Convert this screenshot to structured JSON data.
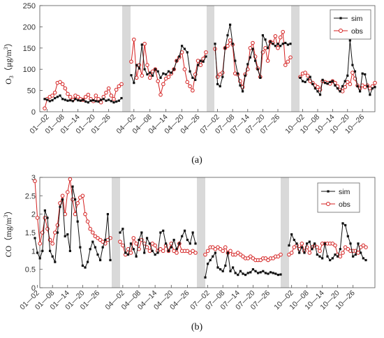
{
  "colors": {
    "sim": "#111111",
    "obs": "#d42020",
    "gap": "#d9d9d9",
    "axis": "#555555"
  },
  "chart_data": [
    {
      "type": "line",
      "caption": "(a)",
      "ylabel": "O3（μg/m3）",
      "ylabel_parts": {
        "base": "O",
        "sub": "3",
        "open": "（μg/m",
        "sup": "3",
        "close": "）"
      },
      "ylim": [
        0,
        250
      ],
      "yticks": [
        "0",
        "50",
        "100",
        "150",
        "200",
        "250"
      ],
      "legend": {
        "position": "top-right",
        "entries": [
          "sim",
          "obs"
        ]
      },
      "grid": false,
      "months": [
        {
          "xticks": [
            "01—02",
            "01—08",
            "01—14",
            "01—20",
            "01—26"
          ]
        },
        {
          "xticks": [
            "04—02",
            "04—08",
            "04—14",
            "04—20",
            "04—26"
          ]
        },
        {
          "xticks": [
            "07—02",
            "07—08",
            "07—14",
            "07—20",
            "07—26"
          ]
        },
        {
          "xticks": [
            "10—02",
            "10—08",
            "10—14",
            "10—20",
            "10—26"
          ]
        }
      ],
      "series": [
        {
          "name": "sim",
          "values": [
            [
              30,
              28,
              25,
              27,
              32,
              35,
              38,
              30,
              28,
              26,
              27,
              25,
              30,
              27,
              26,
              28,
              24,
              22,
              26,
              27,
              25,
              24,
              28,
              30,
              26,
              28,
              25,
              22,
              24,
              26,
              32
            ],
            [
              86,
              68,
              110,
              102,
              158,
              100,
              88,
              92,
              85,
              100,
              95,
              80,
              90,
              88,
              95,
              92,
              100,
              120,
              130,
              155,
              148,
              140,
              95,
              80,
              75,
              110,
              120,
              118,
              130
            ],
            [
              160,
              65,
              60,
              82,
              150,
              180,
              205,
              160,
              120,
              90,
              62,
              48,
              85,
              112,
              128,
              148,
              120,
              100,
              80,
              180,
              170,
              150,
              165,
              160,
              155,
              160,
              155,
              160,
              162,
              158,
              160
            ],
            [
              80,
              72,
              70,
              76,
              82,
              65,
              55,
              48,
              40,
              75,
              68,
              66,
              70,
              72,
              62,
              55,
              48,
              60,
              72,
              85,
              168,
              110,
              95,
              60,
              48,
              90,
              88,
              60,
              40,
              55,
              58
            ]
          ]
        },
        {
          "name": "obs",
          "values": [
            [
              8,
              30,
              35,
              38,
              45,
              68,
              70,
              65,
              55,
              42,
              35,
              28,
              38,
              35,
              30,
              28,
              35,
              40,
              30,
              25,
              38,
              30,
              22,
              35,
              45,
              55,
              38,
              30,
              52,
              60,
              65
            ],
            [
              118,
              170,
              80,
              110,
              85,
              160,
              110,
              80,
              95,
              100,
              72,
              40,
              65,
              78,
              82,
              90,
              100,
              120,
              128,
              140,
              100,
              70,
              60,
              50,
              88,
              120,
              110,
              125,
              140
            ],
            [
              148,
              82,
              88,
              92,
              150,
              155,
              168,
              158,
              90,
              88,
              72,
              58,
              88,
              100,
              150,
              162,
              130,
              102,
              82,
              140,
              150,
              120,
              165,
              162,
              178,
              150,
              175,
              188,
              110,
              118,
              128
            ],
            [
              82,
              90,
              92,
              85,
              72,
              68,
              62,
              58,
              52,
              72,
              70,
              68,
              66,
              72,
              68,
              60,
              52,
              48,
              58,
              70,
              65,
              92,
              78,
              62,
              55,
              62,
              58,
              62,
              55,
              60,
              68
            ]
          ]
        }
      ]
    },
    {
      "type": "line",
      "caption": "(b)",
      "ylabel": "CO（mg/m3）",
      "ylabel_parts": {
        "base": "CO",
        "sub": "",
        "open": "（mg/m",
        "sup": "3",
        "close": "）"
      },
      "ylim": [
        0,
        3
      ],
      "yticks": [
        "0",
        "0.5",
        "1",
        "1.5",
        "2",
        "2.5",
        "3"
      ],
      "legend": {
        "position": "top-right",
        "entries": [
          "sim",
          "obs"
        ]
      },
      "grid": false,
      "months": [
        {
          "xticks": [
            "01—02",
            "01—08",
            "01—14",
            "01—20",
            "01—26"
          ]
        },
        {
          "xticks": [
            "04—02",
            "04—08",
            "04—14",
            "04—20",
            "04—26"
          ]
        },
        {
          "xticks": [
            "07—02",
            "07—08",
            "07—14",
            "07—20",
            "07—26"
          ]
        },
        {
          "xticks": [
            "10—02",
            "10—08",
            "10—14",
            "10—20",
            "10—26"
          ]
        }
      ],
      "series": [
        {
          "name": "sim",
          "values": [
            [
              1.35,
              0.95,
              0.8,
              1.0,
              2.1,
              1.9,
              1.0,
              0.85,
              0.7,
              1.5,
              2.2,
              2.4,
              1.4,
              1.45,
              1.0,
              2.75,
              2.4,
              1.8,
              1.1,
              0.6,
              0.55,
              0.7,
              1.05,
              1.25,
              1.1,
              0.9,
              0.75,
              1.1,
              1.3,
              2.0,
              0.75
            ],
            [
              1.5,
              1.6,
              0.95,
              0.9,
              1.2,
              1.05,
              0.85,
              1.3,
              1.5,
              0.95,
              1.35,
              1.2,
              1.0,
              0.9,
              0.95,
              1.5,
              1.55,
              1.2,
              1.0,
              1.1,
              1.3,
              1.05,
              1.2,
              1.4,
              1.55,
              1.3,
              1.2,
              1.5,
              1.2
            ],
            [
              0.28,
              0.65,
              0.75,
              0.85,
              0.95,
              0.55,
              0.5,
              0.45,
              0.6,
              0.95,
              0.45,
              0.55,
              0.4,
              0.35,
              0.45,
              0.38,
              0.35,
              0.4,
              0.42,
              0.5,
              0.45,
              0.4,
              0.42,
              0.45,
              0.4,
              0.38,
              0.42,
              0.4,
              0.38,
              0.35,
              0.36
            ],
            [
              1.15,
              1.45,
              1.3,
              1.2,
              0.95,
              1.1,
              0.95,
              1.2,
              1.25,
              1.05,
              1.2,
              0.9,
              0.85,
              0.8,
              1.2,
              0.85,
              0.75,
              0.8,
              0.9,
              0.85,
              1.05,
              1.75,
              1.7,
              1.4,
              1.2,
              0.85,
              0.9,
              1.2,
              0.95,
              0.8,
              0.75
            ]
          ]
        },
        {
          "name": "obs",
          "values": [
            [
              2.9,
              1.9,
              1.2,
              1.5,
              1.9,
              1.6,
              1.3,
              1.2,
              1.5,
              1.7,
              2.3,
              2.5,
              2.0,
              2.6,
              2.95,
              2.4,
              2.0,
              2.3,
              2.45,
              2.5,
              2.0,
              1.8,
              1.6,
              1.5,
              1.4,
              1.35,
              1.3,
              1.25,
              1.2,
              1.3,
              1.35
            ],
            [
              1.25,
              1.15,
              0.9,
              1.05,
              0.95,
              1.35,
              1.2,
              1.05,
              1.3,
              1.2,
              1.1,
              1.0,
              1.2,
              1.15,
              1.0,
              1.05,
              1.0,
              1.15,
              1.0,
              1.2,
              1.0,
              0.95,
              1.2,
              1.0,
              1.0,
              1.0,
              0.95,
              1.0,
              0.95
            ],
            [
              0.9,
              1.0,
              1.1,
              1.1,
              1.05,
              1.1,
              1.05,
              1.0,
              1.1,
              0.95,
              1.0,
              0.9,
              0.9,
              0.95,
              0.9,
              0.85,
              0.8,
              0.8,
              0.85,
              0.8,
              0.75,
              0.75,
              0.75,
              0.8,
              0.8,
              0.75,
              0.8,
              0.8,
              0.85,
              0.85,
              0.9
            ],
            [
              0.9,
              0.95,
              1.1,
              1.15,
              1.05,
              1.2,
              1.0,
              1.1,
              0.95,
              1.1,
              1.15,
              1.1,
              1.0,
              1.2,
              1.2,
              1.2,
              1.2,
              1.2,
              1.15,
              0.9,
              0.85,
              0.95,
              1.1,
              1.05,
              1.0,
              1.0,
              1.0,
              0.95,
              1.1,
              1.15,
              1.1
            ]
          ]
        }
      ]
    }
  ]
}
